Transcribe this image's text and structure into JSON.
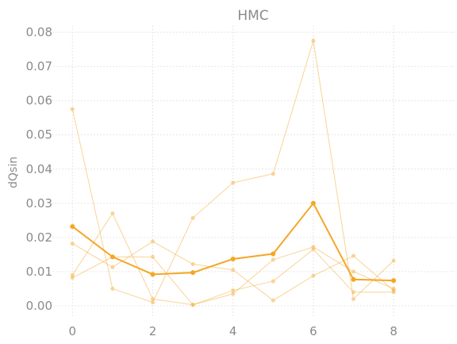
{
  "chart_data": {
    "type": "line",
    "title": "HMC",
    "xlabel": "",
    "ylabel": "dQsin",
    "xlim": [
      -0.5,
      9.5
    ],
    "ylim": [
      -0.0035,
      0.082
    ],
    "x_ticks": [
      "0",
      "2",
      "4",
      "6",
      "8"
    ],
    "y_ticks": [
      "0.00",
      "0.01",
      "0.02",
      "0.03",
      "0.04",
      "0.05",
      "0.06",
      "0.07",
      "0.08"
    ],
    "grid": true,
    "legend": "none",
    "x": [
      0,
      1,
      2,
      3,
      4,
      5,
      6,
      7,
      8
    ],
    "series": [
      {
        "values": [
          0.0575,
          0.005,
          0.001,
          0.0257,
          0.036,
          0.0386,
          0.0775,
          0.002,
          0.0132
        ],
        "color": "#f5b041",
        "opacity": 0.55,
        "width": 1
      },
      {
        "values": [
          0.0182,
          0.0113,
          0.0188,
          0.0122,
          0.0105,
          0.0016,
          0.0088,
          0.0146,
          0.0045
        ],
        "color": "#f5b041",
        "opacity": 0.55,
        "width": 1
      },
      {
        "values": [
          0.009,
          0.027,
          0.002,
          0.0003,
          0.0035,
          0.0135,
          0.0172,
          0.01,
          0.005
        ],
        "color": "#f5b041",
        "opacity": 0.55,
        "width": 1
      },
      {
        "values": [
          0.0082,
          0.0143,
          0.0143,
          0.0003,
          0.0045,
          0.0072,
          0.0165,
          0.004,
          0.004
        ],
        "color": "#f5b041",
        "opacity": 0.55,
        "width": 1
      },
      {
        "values": [
          0.0232,
          0.0143,
          0.0092,
          0.0097,
          0.0137,
          0.0152,
          0.03,
          0.0077,
          0.0074
        ],
        "color": "#f5a623",
        "opacity": 1,
        "width": 2
      }
    ]
  }
}
